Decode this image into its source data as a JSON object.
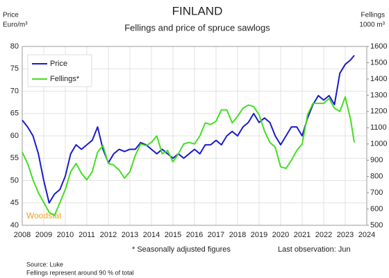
{
  "chart_data": {
    "type": "line",
    "title": "FINLAND",
    "subtitle": "Fellings and price of spruce sawlogs",
    "ylabel": [
      "Price",
      "Euro/m³"
    ],
    "y2label": [
      "Fellings",
      "1000 m³"
    ],
    "annotations": [
      "* Seasonally adjusted figures",
      "Last observation: Jun",
      "Woodstat"
    ],
    "notes": [
      "Source: Luke",
      "Fellings represent around 90 % of total"
    ],
    "x": [
      2008,
      2008.25,
      2008.5,
      2008.75,
      2009,
      2009.25,
      2009.5,
      2009.75,
      2010,
      2010.25,
      2010.5,
      2010.75,
      2011,
      2011.25,
      2011.5,
      2011.75,
      2012,
      2012.25,
      2012.5,
      2012.75,
      2013,
      2013.25,
      2013.5,
      2013.75,
      2014,
      2014.25,
      2014.5,
      2014.75,
      2015,
      2015.25,
      2015.5,
      2015.75,
      2016,
      2016.25,
      2016.5,
      2016.75,
      2017,
      2017.25,
      2017.5,
      2017.75,
      2018,
      2018.25,
      2018.5,
      2018.75,
      2019,
      2019.25,
      2019.5,
      2019.75,
      2020,
      2020.25,
      2020.5,
      2020.75,
      2021,
      2021.25,
      2021.5,
      2021.75,
      2022,
      2022.25,
      2022.5,
      2022.75,
      2023,
      2023.25,
      2023.42
    ],
    "series": [
      {
        "name": "Price",
        "color": "#1a1acc",
        "axis": "y",
        "values": [
          63.5,
          62,
          60,
          56,
          50,
          45,
          47,
          48,
          51,
          56,
          58,
          57,
          58,
          59,
          62,
          57,
          54,
          56,
          57,
          56.5,
          57,
          57,
          58.5,
          58,
          57,
          56,
          57,
          56,
          55,
          56,
          55,
          56,
          57,
          56,
          58,
          58,
          59,
          58,
          60,
          61,
          60,
          62,
          63,
          65,
          63,
          64,
          63,
          60,
          58,
          60,
          62,
          62,
          60,
          64,
          67,
          69,
          68,
          69,
          67,
          74,
          76,
          77,
          78
        ]
      },
      {
        "name": "Fellings*",
        "color": "#44dd22",
        "axis": "y2",
        "values": [
          950,
          880,
          780,
          700,
          640,
          580,
          560,
          640,
          720,
          830,
          880,
          820,
          780,
          830,
          950,
          990,
          880,
          870,
          840,
          790,
          830,
          930,
          1000,
          990,
          1010,
          1050,
          940,
          960,
          890,
          940,
          1000,
          1010,
          1000,
          1050,
          1130,
          1120,
          1140,
          1210,
          1210,
          1130,
          1170,
          1220,
          1240,
          1230,
          1180,
          1080,
          1010,
          980,
          860,
          850,
          900,
          960,
          1000,
          1180,
          1250,
          1250,
          1250,
          1280,
          1220,
          1200,
          1290,
          1150,
          1010
        ]
      }
    ],
    "xlim": [
      2008,
      2024
    ],
    "xticks": [
      2008,
      2009,
      2010,
      2011,
      2012,
      2013,
      2014,
      2015,
      2016,
      2017,
      2018,
      2019,
      2020,
      2021,
      2022,
      2023,
      2024
    ],
    "ylim": [
      40,
      80
    ],
    "yticks": [
      40,
      45,
      50,
      55,
      60,
      65,
      70,
      75,
      80
    ],
    "y2lim": [
      500,
      1600
    ],
    "y2ticks": [
      500,
      600,
      700,
      800,
      900,
      1000,
      1100,
      1200,
      1300,
      1400,
      1500,
      1600
    ],
    "grid": true,
    "legend": "upper-left"
  }
}
